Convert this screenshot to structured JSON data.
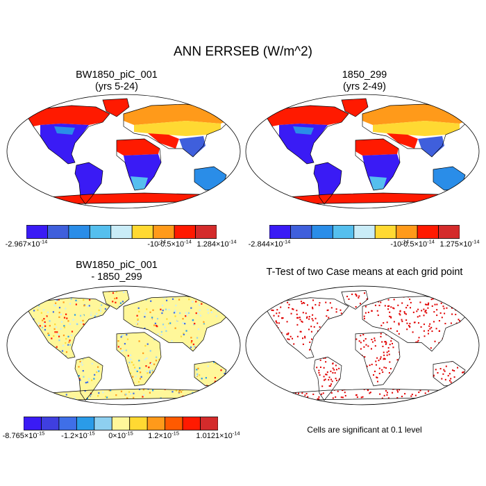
{
  "figure": {
    "title": "ANN ERRSEB (W/m^2)"
  },
  "panels": [
    {
      "title_line1": "BW1850_piC_001",
      "title_line2": "(yrs 5-24)",
      "colorbar": {
        "colors": [
          "#3a1bf5",
          "#3f5fdc",
          "#2a8de8",
          "#55bfee",
          "#c9ecf7",
          "#ffd932",
          "#ff9a1a",
          "#ff1a00",
          "#d42b2b"
        ],
        "labels": [
          {
            "mant": "-2.967",
            "exp": "-14",
            "pos": 0.0
          },
          {
            "mant": "",
            "exp": "-14",
            "pos": 0.685,
            "neg": true
          },
          {
            "mant": "-0.5",
            "exp": "-14",
            "pos": 0.78
          },
          {
            "mant": "1.284",
            "exp": "-14",
            "pos": 1.0
          }
        ]
      }
    },
    {
      "title_line1": "1850_299",
      "title_line2": "(yrs 2-49)",
      "colorbar": {
        "colors": [
          "#3a1bf5",
          "#3f5fdc",
          "#2a8de8",
          "#55bfee",
          "#c9ecf7",
          "#ffd932",
          "#ff9a1a",
          "#ff1a00",
          "#d42b2b"
        ],
        "labels": [
          {
            "mant": "-2.844",
            "exp": "-14",
            "pos": 0.0
          },
          {
            "mant": "",
            "exp": "-14",
            "pos": 0.685,
            "neg": true
          },
          {
            "mant": "-0.5",
            "exp": "-14",
            "pos": 0.78
          },
          {
            "mant": "1.275",
            "exp": "-14",
            "pos": 1.0
          }
        ]
      }
    },
    {
      "title_line1": "BW1850_piC_001",
      "title_line2": "- 1850_299",
      "colorbar": {
        "colors": [
          "#3a1bf5",
          "#3f3fe0",
          "#3f6fe8",
          "#2a9be8",
          "#8ed0f0",
          "#fff79a",
          "#ffd932",
          "#ff9a1a",
          "#ff5a00",
          "#ff1a00",
          "#d42b2b"
        ],
        "labels": [
          {
            "mant": "-8.765",
            "exp": "-15",
            "pos": 0.0
          },
          {
            "mant": "-1.2",
            "exp": "-15",
            "pos": 0.28
          },
          {
            "mant": "0",
            "exp": "-15",
            "pos": 0.5
          },
          {
            "mant": "1.2",
            "exp": "-15",
            "pos": 0.72
          },
          {
            "mant": "1.0121",
            "exp": "-14",
            "pos": 1.0
          }
        ]
      }
    },
    {
      "title_line1": "T-Test of two Case means at each grid point",
      "title_line2": "",
      "footnote": "Cells are significant at 0.1 level"
    }
  ]
}
